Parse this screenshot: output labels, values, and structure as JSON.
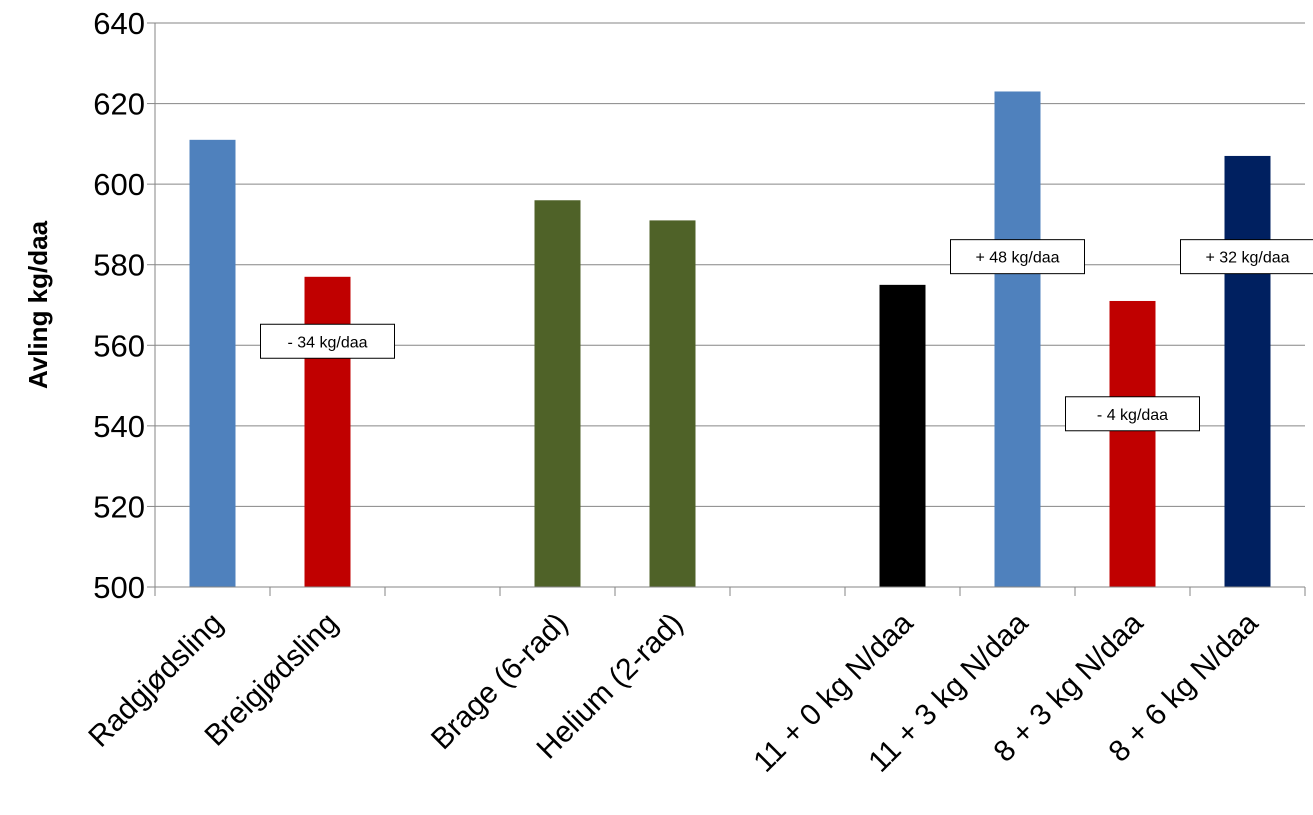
{
  "chart_data": {
    "type": "bar",
    "title": "",
    "xlabel": "",
    "ylabel": "Avling kg/daa",
    "ylim": [
      500,
      640
    ],
    "yticks": [
      500,
      520,
      540,
      560,
      580,
      600,
      620,
      640
    ],
    "grid": true,
    "legend": "none",
    "categories": [
      "Radgjødsling",
      "Breigjødsling",
      "",
      "Brage (6-rad)",
      "Helium (2-rad)",
      "",
      "11 + 0 kg N/daa",
      "11 + 3 kg N/daa",
      "8 + 3 kg N/daa",
      "8 + 6 kg N/daa"
    ],
    "values": [
      611,
      577,
      null,
      596,
      591,
      null,
      575,
      623,
      571,
      607
    ],
    "colors": [
      "#4F81BD",
      "#C00000",
      null,
      "#4F6228",
      "#4F6228",
      null,
      "#000000",
      "#4F81BD",
      "#C00000",
      "#002060"
    ],
    "annotations": [
      {
        "text": "- 34 kg/daa",
        "category": "Breigjødsling",
        "y": 561
      },
      {
        "text": "+ 48 kg/daa",
        "category": "11 + 3 kg N/daa",
        "y": 582
      },
      {
        "text": "- 4 kg/daa",
        "category": "8 + 3 kg N/daa",
        "y": 543
      },
      {
        "text": "+ 32 kg/daa",
        "category": "8 + 6 kg N/daa",
        "y": 582
      }
    ]
  }
}
